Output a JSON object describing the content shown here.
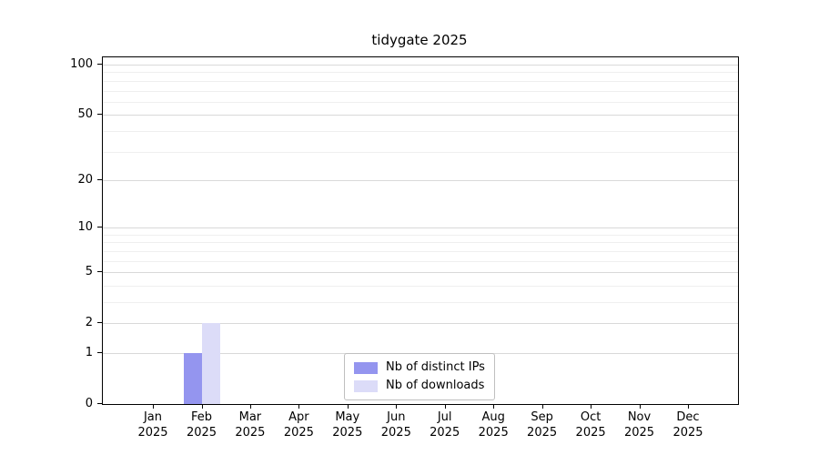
{
  "chart_data": {
    "type": "bar",
    "title": "tidygate 2025",
    "year_label": "2025",
    "categories": [
      "Jan",
      "Feb",
      "Mar",
      "Apr",
      "May",
      "Jun",
      "Jul",
      "Aug",
      "Sep",
      "Oct",
      "Nov",
      "Dec"
    ],
    "series": [
      {
        "name": "Nb of distinct IPs",
        "color": "#9495ef",
        "values": [
          0,
          1,
          0,
          0,
          0,
          0,
          0,
          0,
          0,
          0,
          0,
          0
        ]
      },
      {
        "name": "Nb of downloads",
        "color": "#dcdcf8",
        "values": [
          0,
          2,
          0,
          0,
          0,
          0,
          0,
          0,
          0,
          0,
          0,
          0
        ]
      }
    ],
    "yticks": [
      0,
      1,
      2,
      5,
      10,
      20,
      50,
      100
    ],
    "minor_yticks": [
      3,
      4,
      6,
      7,
      8,
      9,
      30,
      40,
      60,
      70,
      80,
      90
    ],
    "ylim": [
      0,
      100
    ],
    "scale": "log1p",
    "xlabel": "",
    "ylabel": "",
    "grid": "horizontal",
    "legend_position": "bottom-center"
  }
}
